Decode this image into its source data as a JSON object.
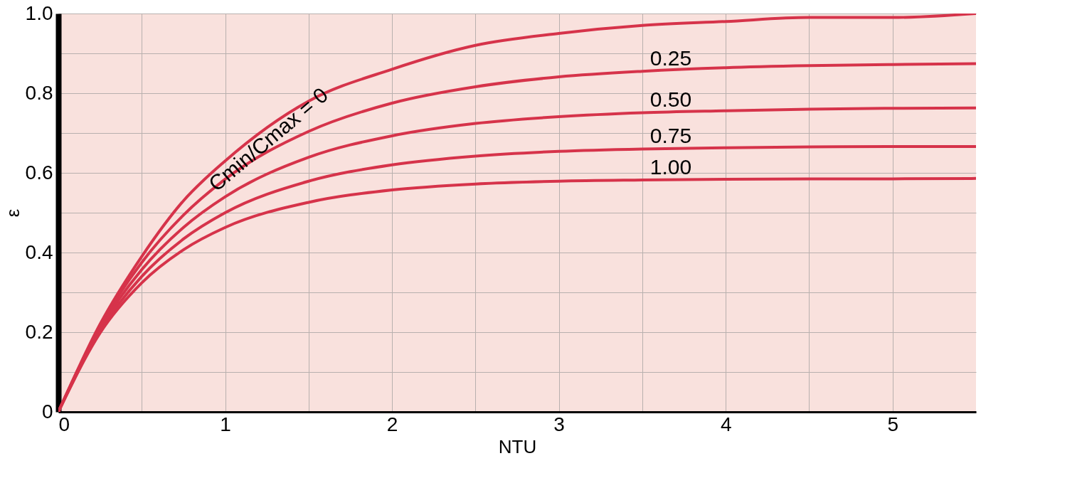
{
  "chart_data": {
    "type": "line",
    "xlabel": "NTU",
    "ylabel": "ε",
    "x": [
      0,
      0.25,
      0.5,
      0.75,
      1,
      1.5,
      2,
      2.5,
      3,
      3.5,
      4,
      4.5,
      5,
      5.5
    ],
    "series": [
      {
        "name": "Cmin/Cmax = 0",
        "color": "#d6334a",
        "values": [
          0,
          0.22,
          0.39,
          0.53,
          0.63,
          0.78,
          0.86,
          0.92,
          0.95,
          0.97,
          0.98,
          0.99,
          0.99,
          1.0
        ]
      },
      {
        "name": "0.25",
        "color": "#d6334a",
        "values": [
          0,
          0.215,
          0.375,
          0.494,
          0.584,
          0.704,
          0.775,
          0.816,
          0.841,
          0.855,
          0.864,
          0.869,
          0.872,
          0.874
        ]
      },
      {
        "name": "0.50",
        "color": "#d6334a",
        "values": [
          0,
          0.209,
          0.357,
          0.463,
          0.54,
          0.639,
          0.693,
          0.724,
          0.741,
          0.751,
          0.756,
          0.76,
          0.762,
          0.763
        ]
      },
      {
        "name": "0.75",
        "color": "#d6334a",
        "values": [
          0,
          0.203,
          0.34,
          0.434,
          0.5,
          0.579,
          0.62,
          0.642,
          0.654,
          0.66,
          0.663,
          0.665,
          0.666,
          0.666
        ]
      },
      {
        "name": "1.00",
        "color": "#d6334a",
        "values": [
          0,
          0.198,
          0.324,
          0.407,
          0.463,
          0.526,
          0.557,
          0.572,
          0.579,
          0.582,
          0.584,
          0.585,
          0.585,
          0.586
        ]
      }
    ],
    "xlim": [
      0,
      5.5
    ],
    "ylim": [
      0,
      1
    ],
    "xticks": [
      0,
      {
        "value": 0.5,
        "label": null
      },
      1,
      {
        "value": 1.5,
        "label": null
      },
      2,
      {
        "value": 2.5,
        "label": null
      },
      3,
      {
        "value": 3.5,
        "label": null
      },
      4,
      {
        "value": 4.5,
        "label": null
      },
      5
    ],
    "yticks": [
      0,
      {
        "value": 0.1,
        "label": null
      },
      0.2,
      {
        "value": 0.3,
        "label": null
      },
      0.4,
      {
        "value": 0.5,
        "label": null
      },
      0.6,
      {
        "value": 0.7,
        "label": null
      },
      0.8,
      {
        "value": 0.9,
        "label": null
      },
      {
        "value": 1,
        "label": "1.0"
      }
    ],
    "grid": true,
    "legend": false,
    "marker": "none",
    "line_style": "solid"
  }
}
